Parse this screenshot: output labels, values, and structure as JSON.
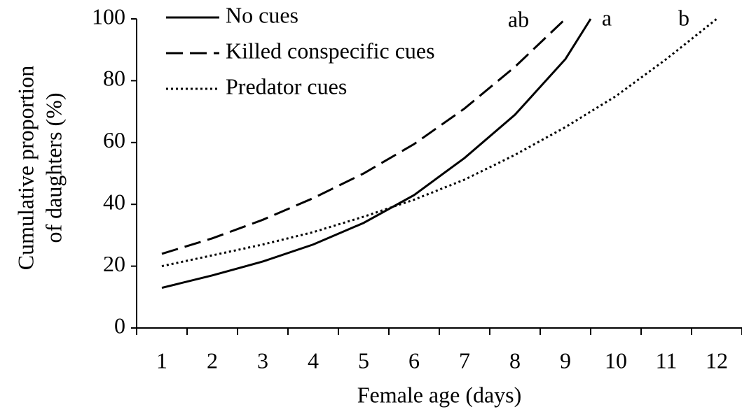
{
  "chart_data": {
    "type": "line",
    "xlabel": "Female age (days)",
    "ylabel": [
      "Cumulative proportion",
      "of daughters (%)"
    ],
    "xlim": [
      0.5,
      12.5
    ],
    "xticks": [
      1,
      2,
      3,
      4,
      5,
      6,
      7,
      8,
      9,
      10,
      11,
      12
    ],
    "ylim": [
      0,
      100
    ],
    "yticks": [
      0,
      20,
      40,
      60,
      80,
      100
    ],
    "legend": "top-left",
    "annotations": [
      "ab",
      "a",
      "b"
    ],
    "series": [
      {
        "name": "No cues",
        "color": "#000000",
        "dash": "solid",
        "x": [
          1,
          2,
          3,
          4,
          5,
          6,
          7,
          8,
          9,
          9.5
        ],
        "values": [
          13,
          17,
          21.5,
          27,
          34,
          43,
          55,
          69,
          87,
          100
        ]
      },
      {
        "name": "Killed conspecific cues",
        "color": "#000000",
        "dash": "dashed",
        "x": [
          1,
          2,
          3,
          4,
          5,
          6,
          7,
          8,
          9
        ],
        "values": [
          24,
          29,
          35,
          42,
          50,
          59.5,
          71,
          84.5,
          100
        ]
      },
      {
        "name": "Predator cues",
        "color": "#000000",
        "dash": "dotted",
        "x": [
          1,
          2,
          3,
          4,
          5,
          6,
          7,
          8,
          9,
          10,
          11,
          12
        ],
        "values": [
          20,
          23.5,
          27,
          31,
          36,
          41.5,
          48,
          56,
          65,
          75,
          87,
          100
        ]
      }
    ]
  }
}
